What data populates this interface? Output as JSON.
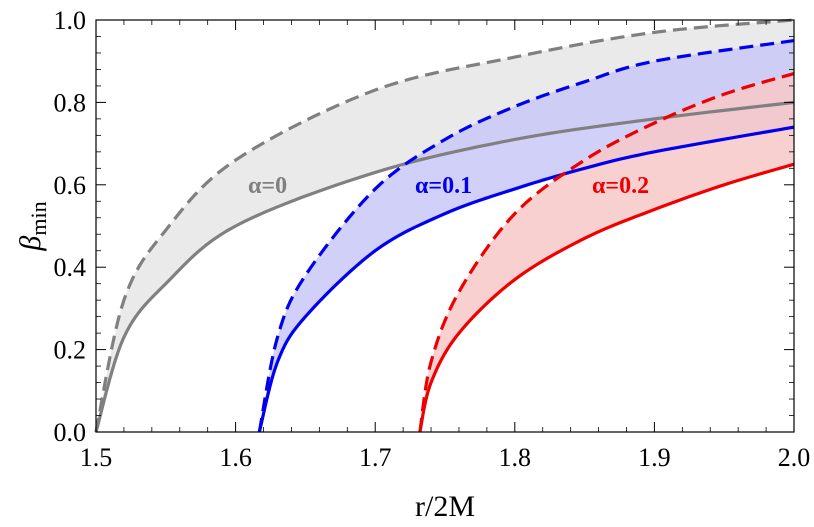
{
  "chart_data": {
    "type": "line",
    "xlabel": "r/2M",
    "ylabel": "β",
    "ylabel_sub": "min",
    "xlim": [
      1.5,
      2.0
    ],
    "ylim": [
      0.0,
      1.0
    ],
    "x_ticks": [
      "1.5",
      "1.6",
      "1.7",
      "1.8",
      "1.9",
      "2.0"
    ],
    "y_ticks": [
      "0.0",
      "0.2",
      "0.4",
      "0.6",
      "0.8",
      "1.0"
    ],
    "grid": false,
    "bands": [
      {
        "annotation": "α=0",
        "color": "#808080",
        "fill": "#e6e6e6",
        "x_start": 1.5,
        "solid": {
          "x": [
            1.5,
            1.52,
            1.55,
            1.6,
            1.7,
            1.8,
            1.9,
            2.0
          ],
          "y": [
            0.0,
            0.23,
            0.36,
            0.5,
            0.63,
            0.71,
            0.76,
            0.8
          ]
        },
        "dashed": {
          "x": [
            1.5,
            1.52,
            1.55,
            1.6,
            1.7,
            1.8,
            1.9,
            2.0
          ],
          "y": [
            0.0,
            0.32,
            0.49,
            0.66,
            0.83,
            0.91,
            0.97,
            1.0
          ]
        }
      },
      {
        "annotation": "α=0.1",
        "color": "#0000ee",
        "fill": "#c8c8f8",
        "x_start": 1.617,
        "solid": {
          "x": [
            1.617,
            1.63,
            1.65,
            1.7,
            1.75,
            1.8,
            1.85,
            1.9,
            2.0
          ],
          "y": [
            0.0,
            0.17,
            0.28,
            0.44,
            0.53,
            0.59,
            0.64,
            0.68,
            0.74
          ]
        },
        "dashed": {
          "x": [
            1.617,
            1.63,
            1.65,
            1.7,
            1.75,
            1.8,
            1.85,
            1.9,
            2.0
          ],
          "y": [
            0.0,
            0.23,
            0.38,
            0.59,
            0.71,
            0.79,
            0.85,
            0.9,
            0.95
          ]
        }
      },
      {
        "annotation": "α=0.2",
        "color": "#ee0000",
        "fill": "#f8c8c8",
        "x_start": 1.732,
        "solid": {
          "x": [
            1.732,
            1.74,
            1.76,
            1.8,
            1.85,
            1.9,
            1.95,
            2.0
          ],
          "y": [
            0.0,
            0.12,
            0.24,
            0.37,
            0.47,
            0.54,
            0.6,
            0.65
          ]
        },
        "dashed": {
          "x": [
            1.732,
            1.74,
            1.76,
            1.8,
            1.85,
            1.9,
            1.95,
            2.0
          ],
          "y": [
            0.0,
            0.17,
            0.34,
            0.53,
            0.66,
            0.75,
            0.82,
            0.87
          ]
        }
      }
    ]
  }
}
